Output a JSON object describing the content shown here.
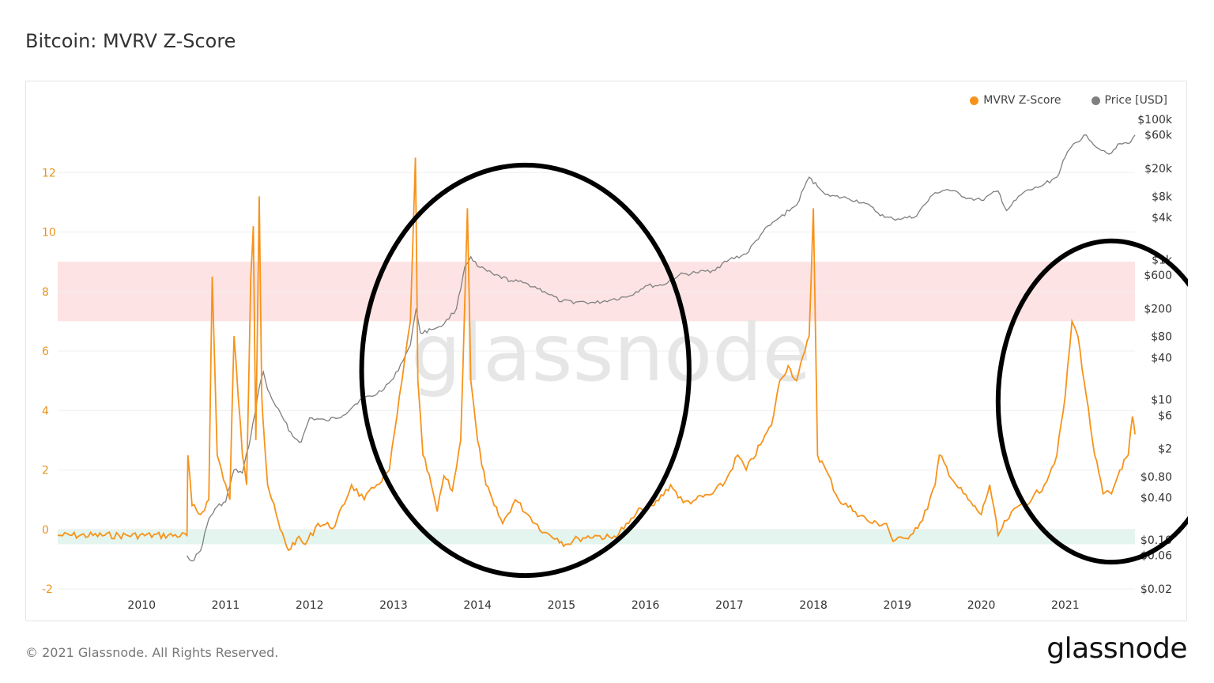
{
  "page": {
    "title": "Bitcoin: MVRV Z-Score",
    "copyright": "© 2021 Glassnode. All Rights Reserved.",
    "logo_text": "glassnode",
    "watermark": "glassnode"
  },
  "legend": [
    {
      "label": "MVRV Z-Score",
      "color": "#f7931a"
    },
    {
      "label": "Price [USD]",
      "color": "#7f7f7f"
    }
  ],
  "colors": {
    "zscore": "#f7931a",
    "price": "#7f7f7f",
    "red_band": "#fde3e3",
    "green_band": "#e3f5ee",
    "annotation": "#000000",
    "grid": "#efefef",
    "left_tick": "#e8941e",
    "right_tick": "#333333"
  },
  "chart_data": {
    "type": "line",
    "title": "Bitcoin: MVRV Z-Score",
    "x_range": [
      2009.0,
      2021.83
    ],
    "x_ticks": [
      "2010",
      "2011",
      "2012",
      "2013",
      "2014",
      "2015",
      "2016",
      "2017",
      "2018",
      "2019",
      "2020",
      "2021"
    ],
    "y_left": {
      "range": [
        -2,
        14
      ],
      "ticks": [
        "-2",
        "0",
        "2",
        "4",
        "6",
        "8",
        "10",
        "12"
      ]
    },
    "y_right": {
      "scale": "log",
      "range": [
        0.02,
        100000
      ],
      "ticks": [
        {
          "label": "$0.02",
          "value": 0.02
        },
        {
          "label": "$0.06",
          "value": 0.06
        },
        {
          "label": "$0.10",
          "value": 0.1
        },
        {
          "label": "$0.40",
          "value": 0.4
        },
        {
          "label": "$0.80",
          "value": 0.8
        },
        {
          "label": "$2",
          "value": 2
        },
        {
          "label": "$6",
          "value": 6
        },
        {
          "label": "$10",
          "value": 10
        },
        {
          "label": "$40",
          "value": 40
        },
        {
          "label": "$80",
          "value": 80
        },
        {
          "label": "$200",
          "value": 200
        },
        {
          "label": "$600",
          "value": 600
        },
        {
          "label": "$1k",
          "value": 1000
        },
        {
          "label": "$4k",
          "value": 4000
        },
        {
          "label": "$8k",
          "value": 8000
        },
        {
          "label": "$20k",
          "value": 20000
        },
        {
          "label": "$60k",
          "value": 60000
        },
        {
          "label": "$100k",
          "value": 100000
        }
      ]
    },
    "bands": [
      {
        "from": 7,
        "to": 9,
        "color": "#fde3e3"
      },
      {
        "from": -0.5,
        "to": 0,
        "color": "#e3f5ee"
      }
    ],
    "grid": true,
    "legend_position": "top-right",
    "series": [
      {
        "name": "MVRV Z-Score",
        "axis": "left",
        "color": "#f7931a",
        "x": [
          2009.0,
          2010.54,
          2010.55,
          2010.6,
          2010.7,
          2010.8,
          2010.84,
          2010.9,
          2010.95,
          2011.05,
          2011.1,
          2011.2,
          2011.25,
          2011.3,
          2011.33,
          2011.36,
          2011.4,
          2011.43,
          2011.45,
          2011.5,
          2011.55,
          2011.65,
          2011.75,
          2011.85,
          2011.95,
          2012.1,
          2012.3,
          2012.5,
          2012.65,
          2012.8,
          2012.95,
          2013.1,
          2013.2,
          2013.26,
          2013.29,
          2013.35,
          2013.45,
          2013.52,
          2013.6,
          2013.7,
          2013.8,
          2013.88,
          2013.92,
          2014.0,
          2014.1,
          2014.2,
          2014.3,
          2014.45,
          2014.6,
          2014.8,
          2014.95,
          2015.05,
          2015.2,
          2015.4,
          2015.6,
          2015.8,
          2015.95,
          2016.1,
          2016.3,
          2016.45,
          2016.6,
          2016.8,
          2016.95,
          2017.1,
          2017.2,
          2017.4,
          2017.5,
          2017.6,
          2017.7,
          2017.8,
          2017.9,
          2017.95,
          2018.0,
          2018.05,
          2018.15,
          2018.3,
          2018.5,
          2018.7,
          2018.87,
          2018.95,
          2019.1,
          2019.3,
          2019.45,
          2019.5,
          2019.7,
          2019.9,
          2020.0,
          2020.1,
          2020.2,
          2020.3,
          2020.45,
          2020.6,
          2020.75,
          2020.9,
          2021.0,
          2021.08,
          2021.15,
          2021.25,
          2021.35,
          2021.45,
          2021.55,
          2021.65,
          2021.75,
          2021.8,
          2021.83
        ],
        "values": [
          -0.2,
          -0.2,
          2.5,
          0.8,
          0.5,
          1.0,
          8.5,
          2.5,
          2.0,
          1.0,
          6.5,
          2.5,
          1.5,
          8.5,
          10.2,
          3.0,
          11.2,
          4.5,
          3.5,
          1.5,
          1.0,
          0.0,
          -0.7,
          -0.3,
          -0.5,
          0.2,
          0.1,
          1.5,
          1.0,
          1.5,
          2.0,
          5.0,
          7.0,
          12.5,
          5.0,
          2.5,
          1.5,
          0.6,
          1.8,
          1.3,
          3.0,
          10.8,
          5.0,
          3.0,
          1.5,
          0.8,
          0.2,
          1.0,
          0.5,
          -0.1,
          -0.3,
          -0.5,
          -0.3,
          -0.2,
          -0.3,
          0.2,
          0.7,
          0.8,
          1.5,
          0.9,
          1.0,
          1.2,
          1.6,
          2.5,
          2.0,
          3.0,
          3.5,
          5.0,
          5.5,
          5.0,
          6.0,
          6.5,
          10.8,
          2.5,
          2.0,
          1.0,
          0.6,
          0.2,
          0.2,
          -0.4,
          -0.3,
          0.3,
          1.5,
          2.5,
          1.5,
          0.8,
          0.5,
          1.5,
          -0.2,
          0.3,
          0.8,
          1.0,
          1.5,
          2.5,
          4.5,
          7.0,
          6.5,
          4.5,
          2.5,
          1.2,
          1.2,
          2.0,
          2.5,
          3.8,
          3.2
        ]
      },
      {
        "name": "Price [USD]",
        "axis": "right",
        "color": "#7f7f7f",
        "x": [
          2010.54,
          2010.6,
          2010.7,
          2010.8,
          2010.9,
          2011.0,
          2011.1,
          2011.2,
          2011.3,
          2011.4,
          2011.45,
          2011.5,
          2011.6,
          2011.7,
          2011.8,
          2011.9,
          2012.0,
          2012.2,
          2012.4,
          2012.6,
          2012.8,
          2013.0,
          2013.2,
          2013.27,
          2013.32,
          2013.45,
          2013.6,
          2013.75,
          2013.85,
          2013.92,
          2014.0,
          2014.2,
          2014.4,
          2014.6,
          2014.8,
          2015.0,
          2015.2,
          2015.4,
          2015.6,
          2015.8,
          2016.0,
          2016.2,
          2016.4,
          2016.6,
          2016.8,
          2017.0,
          2017.2,
          2017.4,
          2017.6,
          2017.8,
          2017.95,
          2018.05,
          2018.2,
          2018.4,
          2018.6,
          2018.85,
          2018.95,
          2019.2,
          2019.45,
          2019.6,
          2019.85,
          2020.0,
          2020.2,
          2020.3,
          2020.5,
          2020.7,
          2020.9,
          2021.0,
          2021.1,
          2021.25,
          2021.4,
          2021.55,
          2021.65,
          2021.75,
          2021.83
        ],
        "values": [
          0.06,
          0.05,
          0.07,
          0.2,
          0.3,
          0.35,
          1.0,
          0.9,
          3.0,
          15.0,
          25.0,
          14.0,
          8.0,
          5.0,
          3.0,
          2.5,
          5.5,
          5.0,
          6.0,
          10.0,
          12.0,
          20.0,
          60.0,
          200.0,
          90.0,
          100.0,
          120.0,
          200.0,
          800.0,
          1100.0,
          800.0,
          600.0,
          500.0,
          450.0,
          350.0,
          250.0,
          250.0,
          240.0,
          270.0,
          300.0,
          420.0,
          430.0,
          600.0,
          650.0,
          700.0,
          1000.0,
          1200.0,
          2500.0,
          4000.0,
          6000.0,
          15000.0,
          11000.0,
          8000.0,
          7500.0,
          6500.0,
          4000.0,
          3800.0,
          4000.0,
          9000.0,
          10000.0,
          7500.0,
          7000.0,
          9500.0,
          5000.0,
          9000.0,
          11000.0,
          15000.0,
          29000.0,
          45000.0,
          60000.0,
          38000.0,
          33000.0,
          45000.0,
          45000.0,
          60000.0
        ]
      }
    ],
    "annotations": [
      {
        "type": "ellipse",
        "cx": 2014.57,
        "cy": 5.35,
        "rx_years": 1.95,
        "ry_units": 6.9
      },
      {
        "type": "ellipse",
        "cx": 2021.55,
        "cy": 4.3,
        "rx_years": 1.35,
        "ry_units": 5.4
      }
    ]
  }
}
